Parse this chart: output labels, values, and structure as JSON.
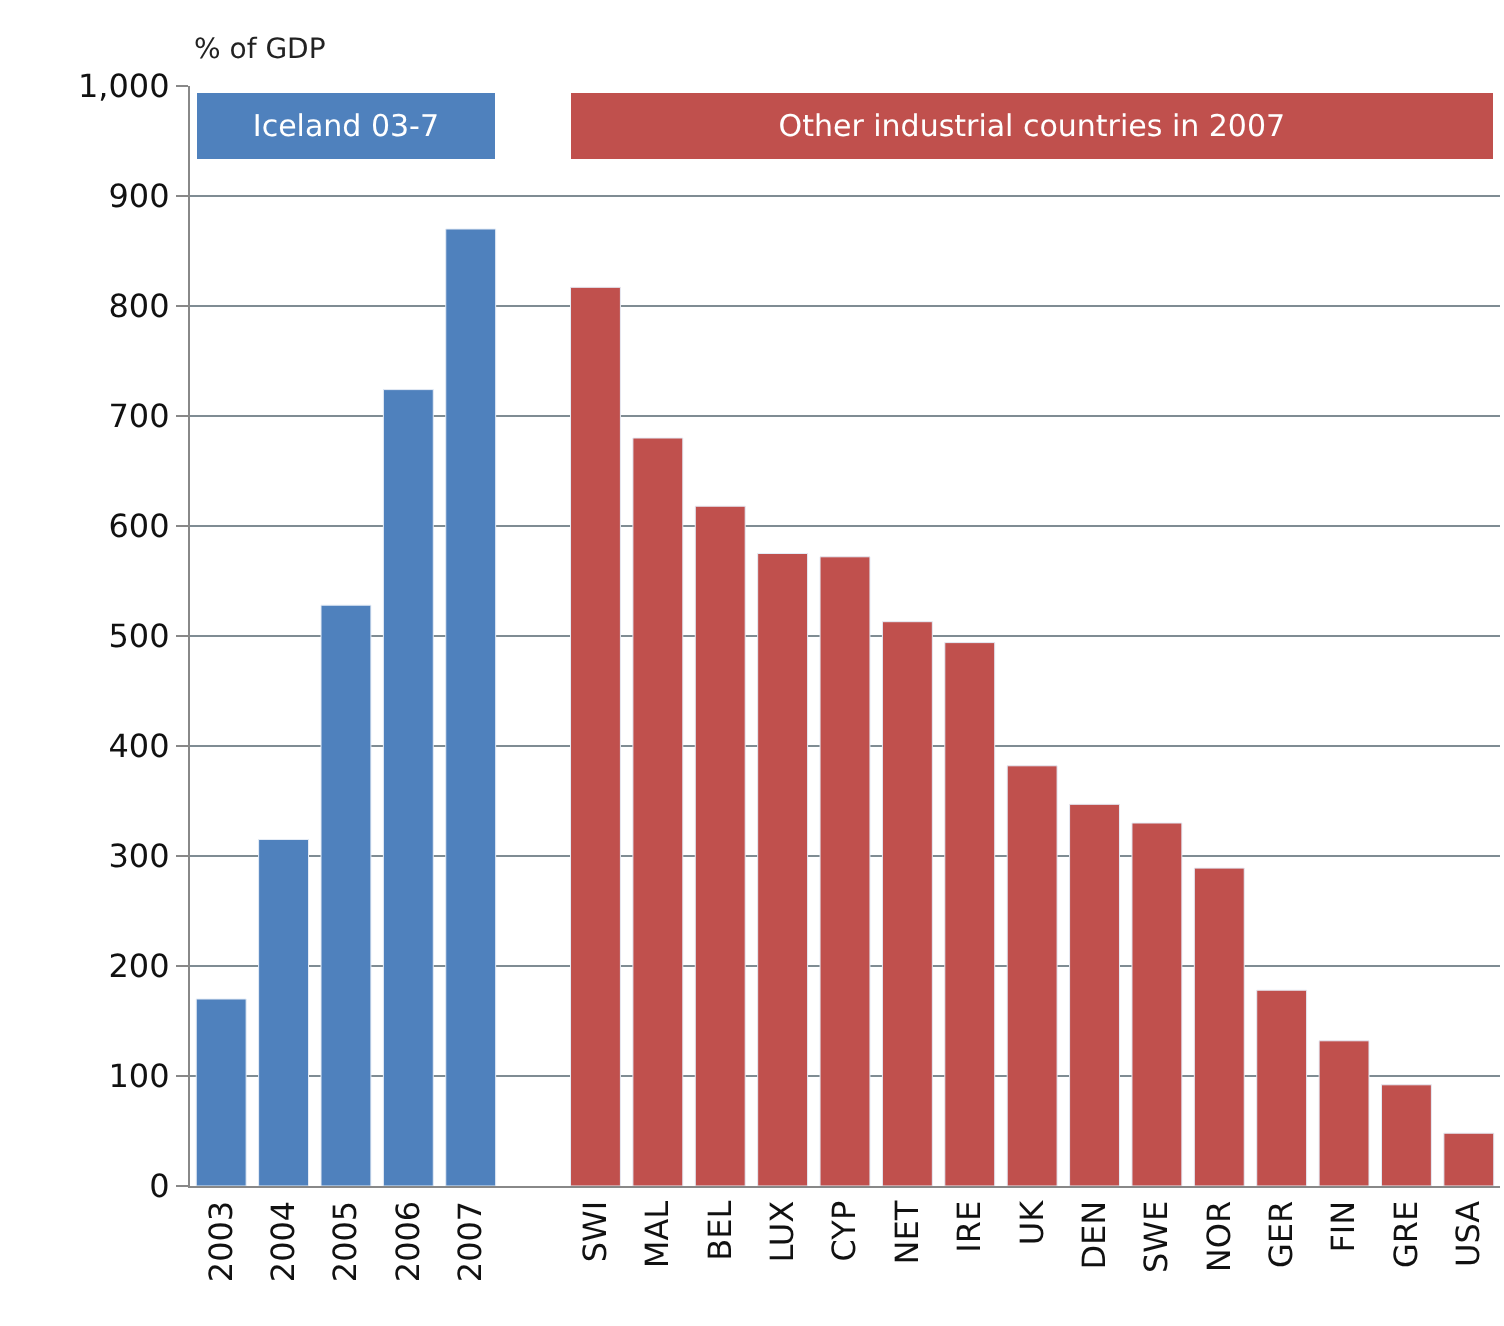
{
  "chart_data": {
    "type": "bar",
    "ylabel": "% of GDP",
    "categories": [
      "2003",
      "2004",
      "2005",
      "2006",
      "2007",
      null,
      "SWI",
      "MAL",
      "BEL",
      "LUX",
      "CYP",
      "NET",
      "IRE",
      "UK",
      "DEN",
      "SWE",
      "NOR",
      "GER",
      "FIN",
      "GRE",
      "USA"
    ],
    "series": [
      {
        "name": "Iceland 03-7",
        "color": "#4f81bd",
        "values": [
          170,
          315,
          528,
          724,
          870,
          null,
          null,
          null,
          null,
          null,
          null,
          null,
          null,
          null,
          null,
          null,
          null,
          null,
          null,
          null,
          null
        ]
      },
      {
        "name": "Other industrial countries in 2007",
        "color": "#c0504d",
        "values": [
          null,
          null,
          null,
          null,
          null,
          null,
          817,
          680,
          618,
          575,
          572,
          513,
          494,
          382,
          347,
          330,
          289,
          178,
          132,
          92,
          48
        ]
      }
    ],
    "ylim": [
      0,
      1000
    ],
    "yticks": [
      0,
      100,
      200,
      300,
      400,
      500,
      600,
      700,
      800,
      900,
      {
        "value": 1000,
        "label": "1,000"
      }
    ],
    "grid": "y",
    "legend": false
  }
}
